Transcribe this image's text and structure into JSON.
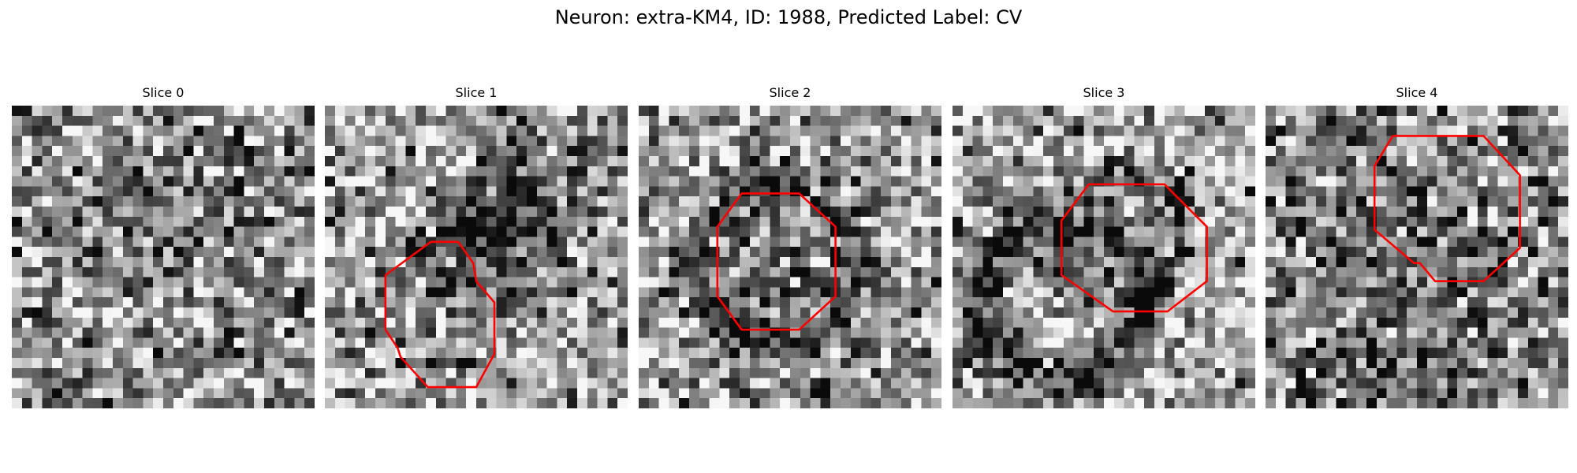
{
  "figure": {
    "title": "Neuron: extra-KM4, ID: 1988, Predicted Label: CV"
  },
  "colors": {
    "outline": "#ff0000",
    "background": "#ffffff"
  },
  "panels": [
    {
      "title": "Slice 0"
    },
    {
      "title": "Slice 1"
    },
    {
      "title": "Slice 2"
    },
    {
      "title": "Slice 3"
    },
    {
      "title": "Slice 4"
    }
  ]
}
